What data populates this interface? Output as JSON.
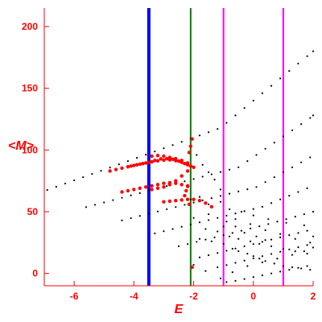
{
  "chart_data": {
    "type": "scatter",
    "title": "",
    "xlabel": "E",
    "ylabel": "<M>",
    "xlim": [
      -7,
      2
    ],
    "ylim": [
      -10,
      215
    ],
    "xticks": [
      -6,
      -4,
      -2,
      0,
      2
    ],
    "yticks": [
      0,
      50,
      100,
      150,
      200
    ],
    "grid": false,
    "axis_color": "#ff0000",
    "vertical_lines": [
      {
        "x": -3.5,
        "color": "#0000ff"
      },
      {
        "x": -2.1,
        "color": "#008000"
      },
      {
        "x": -1.0,
        "color": "#ff00ff"
      },
      {
        "x": 1.0,
        "color": "#ff00ff"
      }
    ],
    "series": [
      {
        "color": "#000000",
        "marker_size": 1.1,
        "points": [
          [
            -6.9,
            67.6
          ],
          [
            -6.6,
            70.2
          ],
          [
            -6.3,
            72.8
          ],
          [
            -6.0,
            75.4
          ],
          [
            -5.7,
            78.0
          ],
          [
            -5.4,
            80.6
          ],
          [
            -5.1,
            83.2
          ],
          [
            -4.8,
            85.8
          ],
          [
            -4.5,
            88.4
          ],
          [
            -4.2,
            91.0
          ],
          [
            -3.9,
            93.6
          ],
          [
            -3.6,
            96.2
          ],
          [
            -3.3,
            98.8
          ],
          [
            -3.0,
            101.4
          ],
          [
            -2.7,
            104.0
          ],
          [
            -2.4,
            106.6
          ],
          [
            -2.1,
            109.2
          ],
          [
            -1.8,
            111.8
          ],
          [
            -1.5,
            114.4
          ],
          [
            -1.2,
            117.0
          ],
          [
            -0.9,
            122.0
          ],
          [
            -0.6,
            128.0
          ],
          [
            -0.3,
            134.0
          ],
          [
            0.0,
            140.0
          ],
          [
            0.3,
            146.0
          ],
          [
            0.6,
            152.0
          ],
          [
            0.9,
            158.0
          ],
          [
            1.2,
            164.0
          ],
          [
            1.5,
            170.0
          ],
          [
            1.8,
            176.0
          ],
          [
            2.0,
            180.0
          ],
          [
            -5.6,
            53.7
          ],
          [
            -5.3,
            55.6
          ],
          [
            -5.0,
            57.5
          ],
          [
            -4.7,
            59.4
          ],
          [
            -4.4,
            61.3
          ],
          [
            -4.1,
            63.2
          ],
          [
            -3.8,
            65.1
          ],
          [
            -3.5,
            67.0
          ],
          [
            -3.2,
            68.9
          ],
          [
            -2.9,
            70.8
          ],
          [
            -2.6,
            72.7
          ],
          [
            -2.3,
            74.6
          ],
          [
            -2.0,
            76.5
          ],
          [
            -1.7,
            78.4
          ],
          [
            -1.4,
            80.3
          ],
          [
            -1.1,
            82.2
          ],
          [
            -0.8,
            84.1
          ],
          [
            -0.5,
            86.0
          ],
          [
            -0.2,
            91.0
          ],
          [
            0.1,
            96.0
          ],
          [
            0.4,
            101.0
          ],
          [
            0.7,
            106.0
          ],
          [
            1.0,
            111.0
          ],
          [
            1.3,
            116.0
          ],
          [
            1.6,
            121.0
          ],
          [
            1.9,
            126.0
          ],
          [
            2.0,
            128.0
          ],
          [
            -4.4,
            43.0
          ],
          [
            -4.1,
            44.8
          ],
          [
            -3.8,
            46.6
          ],
          [
            -3.5,
            48.4
          ],
          [
            -3.2,
            50.2
          ],
          [
            -2.9,
            52.0
          ],
          [
            -2.6,
            53.8
          ],
          [
            -2.3,
            55.6
          ],
          [
            -2.0,
            57.4
          ],
          [
            -1.7,
            59.2
          ],
          [
            -1.4,
            61.0
          ],
          [
            -1.1,
            62.8
          ],
          [
            -0.8,
            64.6
          ],
          [
            -0.5,
            66.4
          ],
          [
            -0.2,
            68.2
          ],
          [
            0.1,
            70.0
          ],
          [
            0.4,
            74.0
          ],
          [
            0.7,
            78.0
          ],
          [
            1.0,
            82.0
          ],
          [
            1.3,
            86.0
          ],
          [
            1.6,
            90.0
          ],
          [
            1.9,
            94.0
          ],
          [
            -3.3,
            32.4
          ],
          [
            -3.0,
            34.2
          ],
          [
            -2.7,
            36.0
          ],
          [
            -2.4,
            37.8
          ],
          [
            -2.1,
            39.6
          ],
          [
            -1.8,
            41.4
          ],
          [
            -1.5,
            43.2
          ],
          [
            -1.2,
            45.0
          ],
          [
            -0.9,
            46.8
          ],
          [
            -0.6,
            48.6
          ],
          [
            -0.3,
            50.4
          ],
          [
            0.0,
            52.2
          ],
          [
            0.3,
            54.0
          ],
          [
            0.6,
            57.0
          ],
          [
            0.9,
            60.0
          ],
          [
            1.2,
            63.0
          ],
          [
            1.5,
            66.0
          ],
          [
            1.8,
            69.0
          ],
          [
            -2.5,
            22.0
          ],
          [
            -2.2,
            23.8
          ],
          [
            -1.9,
            25.6
          ],
          [
            -1.6,
            27.4
          ],
          [
            -1.3,
            29.2
          ],
          [
            -1.0,
            31.0
          ],
          [
            -0.7,
            32.8
          ],
          [
            -0.4,
            34.6
          ],
          [
            -0.1,
            36.4
          ],
          [
            0.2,
            38.2
          ],
          [
            0.5,
            40.0
          ],
          [
            0.8,
            42.0
          ],
          [
            1.1,
            44.0
          ],
          [
            1.4,
            46.0
          ],
          [
            1.7,
            48.0
          ],
          [
            2.0,
            50.0
          ],
          [
            -1.8,
            13.0
          ],
          [
            -1.5,
            14.8
          ],
          [
            -1.2,
            16.6
          ],
          [
            -0.9,
            18.4
          ],
          [
            -0.6,
            20.2
          ],
          [
            -0.3,
            22.0
          ],
          [
            0.0,
            23.8
          ],
          [
            0.3,
            25.6
          ],
          [
            0.6,
            27.4
          ],
          [
            0.9,
            29.2
          ],
          [
            1.2,
            31.0
          ],
          [
            1.5,
            32.8
          ],
          [
            1.8,
            34.6
          ],
          [
            -1.2,
            5.0
          ],
          [
            -0.9,
            6.8
          ],
          [
            -0.6,
            8.6
          ],
          [
            -0.3,
            10.4
          ],
          [
            0.0,
            12.2
          ],
          [
            0.3,
            14.0
          ],
          [
            0.6,
            15.8
          ],
          [
            0.9,
            17.6
          ],
          [
            1.2,
            19.4
          ],
          [
            1.5,
            21.2
          ],
          [
            1.8,
            23.0
          ],
          [
            -0.9,
            -7.0
          ],
          [
            -0.6,
            -6.0
          ],
          [
            -0.3,
            -4.5
          ],
          [
            0.0,
            -3.0
          ],
          [
            0.3,
            -1.5
          ],
          [
            0.6,
            0.0
          ],
          [
            0.9,
            1.5
          ],
          [
            1.2,
            3.0
          ],
          [
            1.5,
            4.5
          ],
          [
            1.8,
            6.0
          ],
          [
            -1.8,
            28.0
          ],
          [
            -1.4,
            26.0
          ],
          [
            -1.0,
            24.0
          ],
          [
            -0.7,
            20.0
          ],
          [
            -0.5,
            18.0
          ],
          [
            -0.2,
            16.0
          ],
          [
            0.0,
            14.0
          ],
          [
            0.2,
            12.0
          ],
          [
            0.4,
            10.0
          ],
          [
            0.7,
            8.0
          ],
          [
            1.0,
            6.0
          ],
          [
            1.3,
            5.0
          ],
          [
            1.6,
            4.0
          ],
          [
            1.9,
            3.0
          ],
          [
            -1.6,
            36.0
          ],
          [
            -1.2,
            34.0
          ],
          [
            -0.8,
            30.0
          ],
          [
            -0.5,
            28.0
          ],
          [
            -0.1,
            26.0
          ],
          [
            0.2,
            24.0
          ],
          [
            0.6,
            22.0
          ],
          [
            1.0,
            20.0
          ],
          [
            1.4,
            18.0
          ],
          [
            1.8,
            16.0
          ],
          [
            -2.1,
            60.0
          ],
          [
            -1.8,
            62.0
          ],
          [
            -1.5,
            56.0
          ],
          [
            -1.1,
            58.0
          ],
          [
            -0.8,
            52.0
          ],
          [
            -0.4,
            50.0
          ],
          [
            0.0,
            47.0
          ],
          [
            0.5,
            44.0
          ],
          [
            1.1,
            41.0
          ],
          [
            1.7,
            39.0
          ],
          [
            -1.9,
            96.0
          ],
          [
            -1.7,
            88.0
          ],
          [
            -1.5,
            82.0
          ],
          [
            -1.3,
            76.0
          ],
          [
            -1.1,
            68.0
          ],
          [
            -0.9,
            42.0
          ],
          [
            -0.6,
            38.0
          ],
          [
            -0.3,
            33.0
          ],
          [
            0.1,
            30.0
          ],
          [
            0.4,
            27.0
          ],
          [
            -2.0,
            7.0
          ],
          [
            -1.6,
            2.0
          ],
          [
            -1.1,
            -4.0
          ],
          [
            -0.7,
            1.0
          ],
          [
            -0.2,
            6.0
          ],
          [
            0.3,
            9.0
          ],
          [
            0.8,
            12.0
          ],
          [
            1.3,
            15.0
          ],
          [
            1.7,
            18.0
          ],
          [
            2.0,
            21.0
          ],
          [
            -2.0,
            45.0
          ],
          [
            -1.5,
            48.0
          ],
          [
            -1.0,
            38.0
          ],
          [
            -0.6,
            44.0
          ],
          [
            -0.1,
            40.0
          ],
          [
            0.4,
            35.0
          ],
          [
            0.9,
            32.0
          ],
          [
            1.4,
            28.0
          ],
          [
            1.9,
            25.0
          ],
          [
            2.0,
            30.0
          ]
        ]
      },
      {
        "color": "#ff0000",
        "marker_size": 2.2,
        "points": [
          [
            -4.8,
            83.0
          ],
          [
            -4.6,
            84.2
          ],
          [
            -4.4,
            85.3
          ],
          [
            -4.2,
            86.4
          ],
          [
            -4.0,
            87.5
          ],
          [
            -3.8,
            88.5
          ],
          [
            -3.6,
            89.5
          ],
          [
            -3.4,
            90.4
          ],
          [
            -3.2,
            91.2
          ],
          [
            -3.0,
            91.8
          ],
          [
            -2.8,
            92.0
          ],
          [
            -2.6,
            91.4
          ],
          [
            -2.4,
            90.0
          ],
          [
            -2.2,
            88.0
          ],
          [
            -2.0,
            86.0
          ],
          [
            -2.2,
            83.0
          ],
          [
            -2.4,
            79.0
          ],
          [
            -2.6,
            75.0
          ],
          [
            -2.8,
            72.0
          ],
          [
            -3.0,
            70.0
          ],
          [
            -3.2,
            69.0
          ],
          [
            -3.4,
            68.0
          ],
          [
            -4.1,
            87.0
          ],
          [
            -3.9,
            88.0
          ],
          [
            -3.7,
            89.0
          ],
          [
            -3.5,
            90.0
          ],
          [
            -3.3,
            91.5
          ],
          [
            -3.1,
            92.8
          ],
          [
            -2.9,
            93.0
          ],
          [
            -2.7,
            92.5
          ],
          [
            -2.5,
            91.0
          ],
          [
            -2.3,
            89.0
          ],
          [
            -2.1,
            87.0
          ],
          [
            -3.4,
            95.0
          ],
          [
            -3.2,
            95.5
          ],
          [
            -3.0,
            95.0
          ],
          [
            -2.8,
            94.0
          ],
          [
            -2.6,
            93.0
          ],
          [
            -2.4,
            91.5
          ],
          [
            -2.2,
            89.5
          ],
          [
            -4.4,
            66.0
          ],
          [
            -4.2,
            67.0
          ],
          [
            -4.0,
            68.0
          ],
          [
            -3.8,
            69.0
          ],
          [
            -3.6,
            70.0
          ],
          [
            -3.4,
            71.0
          ],
          [
            -3.2,
            72.0
          ],
          [
            -3.0,
            73.0
          ],
          [
            -2.8,
            73.5
          ],
          [
            -2.6,
            73.0
          ],
          [
            -2.4,
            72.0
          ],
          [
            -2.2,
            70.5
          ],
          [
            -3.0,
            58.0
          ],
          [
            -2.8,
            58.5
          ],
          [
            -2.6,
            59.0
          ],
          [
            -2.4,
            59.5
          ],
          [
            -2.2,
            60.0
          ],
          [
            -2.0,
            60.0
          ],
          [
            -1.8,
            59.0
          ],
          [
            -1.6,
            57.0
          ],
          [
            -1.4,
            54.0
          ],
          [
            -2.15,
            56.0
          ],
          [
            -2.05,
            5.0
          ],
          [
            -2.15,
            98.0
          ],
          [
            -2.1,
            103.0
          ],
          [
            -2.05,
            109.0
          ],
          [
            -2.3,
            63.0
          ],
          [
            -2.25,
            67.0
          ],
          [
            -2.2,
            71.0
          ]
        ]
      }
    ]
  }
}
